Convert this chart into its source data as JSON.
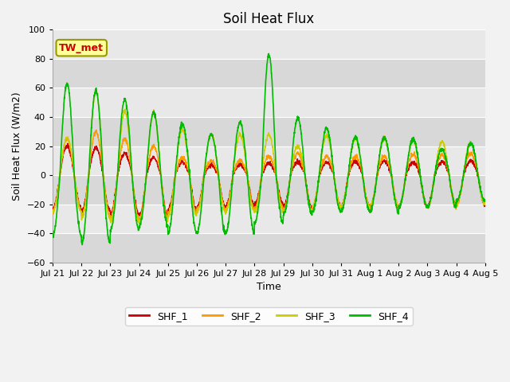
{
  "title": "Soil Heat Flux",
  "ylabel": "Soil Heat Flux (W/m2)",
  "xlabel": "Time",
  "ylim": [
    -60,
    100
  ],
  "fig_bg": "#f2f2f2",
  "axes_bg": "#e8e8e8",
  "annotation_label": "TW_met",
  "annotation_color": "#cc0000",
  "annotation_bg": "#ffff99",
  "annotation_border": "#999900",
  "series_colors": [
    "#cc0000",
    "#ff9900",
    "#cccc00",
    "#00bb00"
  ],
  "series_labels": [
    "SHF_1",
    "SHF_2",
    "SHF_3",
    "SHF_4"
  ],
  "xtick_labels": [
    "Jul 21",
    "Jul 22",
    "Jul 23",
    "Jul 24",
    "Jul 25",
    "Jul 26",
    "Jul 27",
    "Jul 28",
    "Jul 29",
    "Jul 30",
    "Jul 31",
    "Aug 1",
    "Aug 2",
    "Aug 3",
    "Aug 4",
    "Aug 5"
  ],
  "yticks": [
    -60,
    -40,
    -20,
    0,
    20,
    40,
    60,
    80,
    100
  ],
  "n_days": 15,
  "points_per_day": 144,
  "title_fontsize": 12,
  "label_fontsize": 9,
  "tick_fontsize": 8,
  "shf1_max": [
    20,
    19,
    15,
    12,
    9,
    7,
    7,
    8,
    9,
    9,
    9,
    10,
    9,
    9,
    10
  ],
  "shf1_min": [
    -23,
    -25,
    -27,
    -28,
    -24,
    -22,
    -21,
    -20,
    -22,
    -22,
    -22,
    -22,
    -22,
    -21,
    -20
  ],
  "shf2_max": [
    25,
    30,
    25,
    20,
    12,
    10,
    10,
    13,
    15,
    13,
    13,
    13,
    14,
    14,
    15
  ],
  "shf2_min": [
    -25,
    -28,
    -30,
    -30,
    -26,
    -24,
    -24,
    -23,
    -25,
    -22,
    -22,
    -22,
    -22,
    -22,
    -20
  ],
  "shf3_max": [
    26,
    58,
    44,
    43,
    31,
    28,
    28,
    28,
    20,
    27,
    25,
    25,
    24,
    23,
    22
  ],
  "shf3_min": [
    -25,
    -30,
    -32,
    -32,
    -28,
    -25,
    -25,
    -25,
    -25,
    -22,
    -22,
    -22,
    -22,
    -22,
    -20
  ],
  "shf4_max": [
    63,
    58,
    52,
    43,
    35,
    28,
    36,
    83,
    39,
    32,
    26,
    26,
    25,
    18,
    22
  ],
  "shf4_min": [
    -42,
    -47,
    -38,
    -35,
    -40,
    -40,
    -40,
    -33,
    -27,
    -25,
    -25,
    -25,
    -22,
    -22,
    -18
  ]
}
